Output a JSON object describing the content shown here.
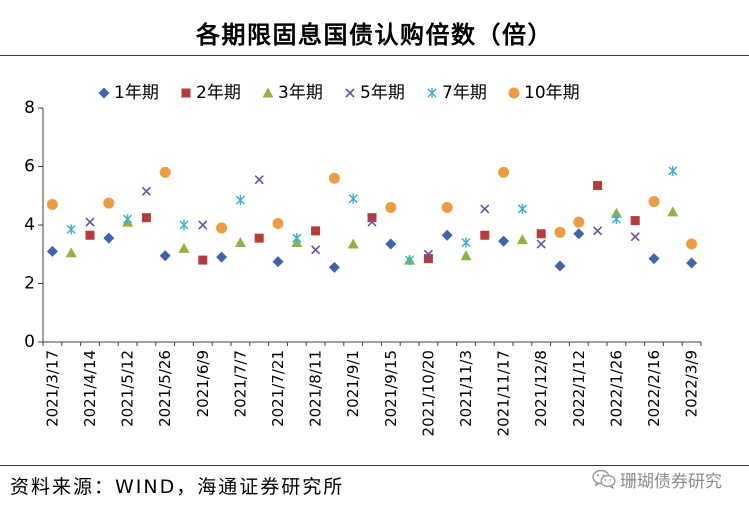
{
  "source": "资料来源：WIND，海通证券研究所",
  "watermark": "珊瑚债券研究",
  "chart_data": {
    "type": "scatter",
    "title": "各期限固息国债认购倍数（倍）",
    "xlabel": "",
    "ylabel": "",
    "ylim": [
      0,
      8
    ],
    "y_ticks": [
      0,
      2,
      4,
      6,
      8
    ],
    "grid": false,
    "legend_position": "top",
    "categories": [
      "2021/3/17",
      "",
      "2021/4/14",
      "",
      "2021/5/12",
      "",
      "2021/5/26",
      "",
      "2021/6/9",
      "",
      "2021/7/7",
      "",
      "2021/7/21",
      "",
      "2021/8/11",
      "",
      "2021/9/1",
      "",
      "2021/9/15",
      "",
      "2021/10/20",
      "",
      "2021/11/3",
      "",
      "2021/11/17",
      "",
      "2021/12/8",
      "",
      "2022/1/12",
      "",
      "2022/1/26",
      "",
      "2022/2/16",
      "",
      "2022/3/9"
    ],
    "series": [
      {
        "name": "1年期",
        "marker": "diamond",
        "color": "#3F64A9",
        "values": [
          3.1,
          null,
          null,
          3.55,
          null,
          null,
          2.95,
          null,
          null,
          2.9,
          null,
          null,
          2.75,
          null,
          null,
          2.55,
          null,
          null,
          3.35,
          null,
          null,
          3.65,
          null,
          null,
          3.45,
          null,
          null,
          2.6,
          3.7,
          null,
          null,
          null,
          2.85,
          null,
          2.7
        ]
      },
      {
        "name": "2年期",
        "marker": "square",
        "color": "#B43C3A",
        "values": [
          null,
          null,
          3.65,
          null,
          null,
          4.25,
          null,
          null,
          2.8,
          null,
          null,
          3.55,
          null,
          null,
          3.8,
          null,
          null,
          4.25,
          null,
          null,
          2.85,
          null,
          null,
          3.65,
          null,
          null,
          3.7,
          null,
          null,
          5.35,
          null,
          4.15,
          null,
          null,
          null
        ]
      },
      {
        "name": "3年期",
        "marker": "triangle",
        "color": "#8FB443",
        "values": [
          null,
          3.05,
          null,
          null,
          4.1,
          null,
          null,
          3.2,
          null,
          null,
          3.4,
          null,
          null,
          3.4,
          null,
          null,
          3.35,
          null,
          null,
          2.8,
          null,
          null,
          2.95,
          null,
          null,
          3.5,
          null,
          null,
          null,
          null,
          4.4,
          null,
          null,
          4.45,
          null
        ]
      },
      {
        "name": "5年期",
        "marker": "x",
        "color": "#6F4F9C",
        "values": [
          null,
          null,
          4.1,
          null,
          null,
          5.15,
          null,
          null,
          4.0,
          null,
          null,
          5.55,
          null,
          null,
          3.15,
          null,
          null,
          4.1,
          null,
          null,
          3.0,
          null,
          null,
          4.55,
          null,
          null,
          3.35,
          null,
          null,
          3.8,
          null,
          3.6,
          null,
          null,
          null
        ]
      },
      {
        "name": "7年期",
        "marker": "asterisk",
        "color": "#40B0CB",
        "values": [
          null,
          3.85,
          null,
          null,
          4.2,
          null,
          null,
          4.0,
          null,
          null,
          4.85,
          null,
          null,
          3.55,
          null,
          null,
          4.9,
          null,
          null,
          2.8,
          null,
          null,
          3.4,
          null,
          null,
          4.55,
          null,
          null,
          null,
          null,
          4.2,
          null,
          null,
          5.85,
          null
        ]
      },
      {
        "name": "10年期",
        "marker": "circle",
        "color": "#EE9B45",
        "values": [
          4.7,
          null,
          null,
          4.75,
          null,
          null,
          5.8,
          null,
          null,
          3.9,
          null,
          null,
          4.05,
          null,
          null,
          5.6,
          null,
          null,
          4.6,
          null,
          null,
          4.6,
          null,
          null,
          5.8,
          null,
          null,
          3.75,
          4.1,
          null,
          null,
          null,
          4.8,
          null,
          3.35
        ]
      }
    ]
  }
}
